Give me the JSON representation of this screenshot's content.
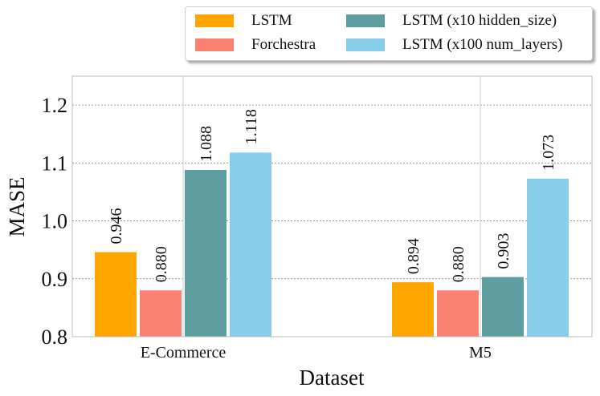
{
  "chart_data": {
    "type": "bar",
    "xlabel": "Dataset",
    "ylabel": "MASE",
    "ylim": [
      0.8,
      1.25
    ],
    "yticks": [
      "0.8",
      "0.9",
      "1.0",
      "1.1",
      "1.2"
    ],
    "categories": [
      "E-Commerce",
      "M5"
    ],
    "series": [
      {
        "name": "LSTM",
        "color": "#ffa500",
        "values": [
          0.946,
          0.894
        ],
        "labels": [
          "0.946",
          "0.894"
        ]
      },
      {
        "name": "Forchestra",
        "color": "#fa8072",
        "values": [
          0.88,
          0.88
        ],
        "labels": [
          "0.880",
          "0.880"
        ]
      },
      {
        "name": "LSTM (x10 hidden_size)",
        "color": "#5f9ea0",
        "values": [
          1.088,
          0.903
        ],
        "labels": [
          "1.088",
          "0.903"
        ]
      },
      {
        "name": "LSTM (x100 num_layers)",
        "color": "#87ceeb",
        "values": [
          1.118,
          1.073
        ],
        "labels": [
          "1.118",
          "1.073"
        ]
      }
    ],
    "grid": "y-major dashed, x at category centers",
    "legend_position": "top-right, outside plot"
  }
}
